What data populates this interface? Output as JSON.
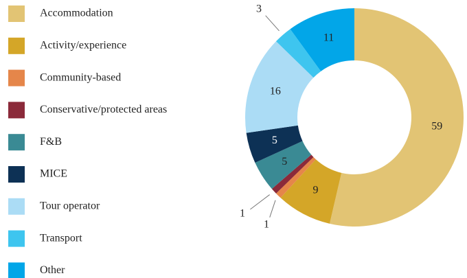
{
  "chart_data": {
    "type": "donut",
    "categories": [
      "Accommodation",
      "Activity/experience",
      "Community-based",
      "Conservative/protected areas",
      "F&B",
      "MICE",
      "Tour operator",
      "Transport",
      "Other"
    ],
    "values": [
      59,
      9,
      1,
      1,
      5,
      5,
      16,
      3,
      11
    ],
    "colors": [
      "#e2c474",
      "#d4a628",
      "#e5864a",
      "#8b2a3a",
      "#3a8a94",
      "#0d3155",
      "#abdcf5",
      "#3ec5ef",
      "#02a6e8"
    ],
    "legend": "left"
  }
}
